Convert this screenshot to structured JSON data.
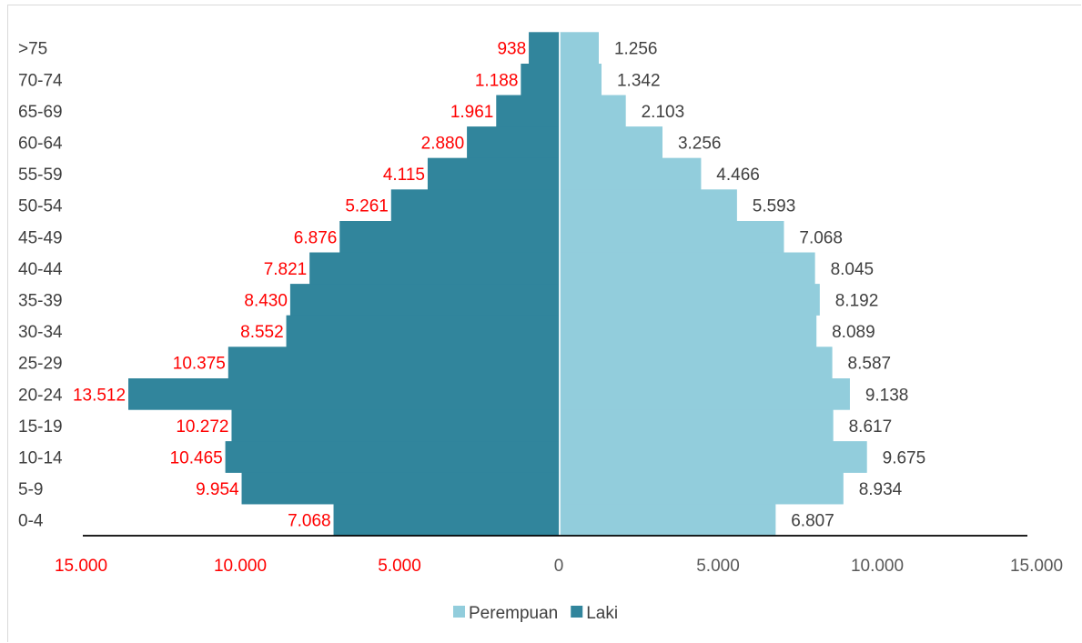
{
  "chart_data": {
    "type": "bar",
    "orientation": "horizontal",
    "subtype": "population-pyramid",
    "categories": [
      "0-4",
      "5-9",
      "10-14",
      "15-19",
      "20-24",
      "25-29",
      "30-34",
      "35-39",
      "40-44",
      "45-49",
      "50-54",
      "55-59",
      "60-64",
      "65-69",
      "70-74",
      ">75"
    ],
    "series": [
      {
        "name": "Laki",
        "color": "#31859c",
        "label_color": "#ff0000",
        "side": "left",
        "values": [
          7068,
          9954,
          10465,
          10272,
          13512,
          10375,
          8552,
          8430,
          7821,
          6876,
          5261,
          4115,
          2880,
          1961,
          1188,
          938
        ],
        "labels": [
          "7.068",
          "9.954",
          "10.465",
          "10.272",
          "13.512",
          "10.375",
          "8.552",
          "8.430",
          "7.821",
          "6.876",
          "5.261",
          "4.115",
          "2.880",
          "1.961",
          "1.188",
          "938"
        ]
      },
      {
        "name": "Perempuan",
        "color": "#92cddc",
        "label_color": "#404040",
        "side": "right",
        "values": [
          6807,
          8934,
          9675,
          8617,
          9138,
          8587,
          8089,
          8192,
          8045,
          7068,
          5593,
          4466,
          3256,
          2103,
          1342,
          1256
        ],
        "labels": [
          "6.807",
          "8.934",
          "9.675",
          "8.617",
          "9.138",
          "8.587",
          "8.089",
          "8.192",
          "8.045",
          "7.068",
          "5.593",
          "4.466",
          "3.256",
          "2.103",
          "1.342",
          "1.256"
        ]
      }
    ],
    "xlim": [
      -15000,
      15000
    ],
    "x_ticks": [
      {
        "value": -15000,
        "label": "15.000",
        "color": "#ff0000"
      },
      {
        "value": -10000,
        "label": "10.000",
        "color": "#ff0000"
      },
      {
        "value": -5000,
        "label": "5.000",
        "color": "#ff0000"
      },
      {
        "value": 0,
        "label": "0",
        "color": "#595959"
      },
      {
        "value": 5000,
        "label": "5.000",
        "color": "#595959"
      },
      {
        "value": 10000,
        "label": "10.000",
        "color": "#595959"
      },
      {
        "value": 15000,
        "label": "15.000",
        "color": "#595959"
      }
    ],
    "legend": {
      "position": "bottom",
      "entries": [
        {
          "name": "Perempuan",
          "color": "#92cddc"
        },
        {
          "name": "Laki",
          "color": "#31859c"
        }
      ]
    },
    "grid": false,
    "title": "",
    "xlabel": "",
    "ylabel": ""
  }
}
